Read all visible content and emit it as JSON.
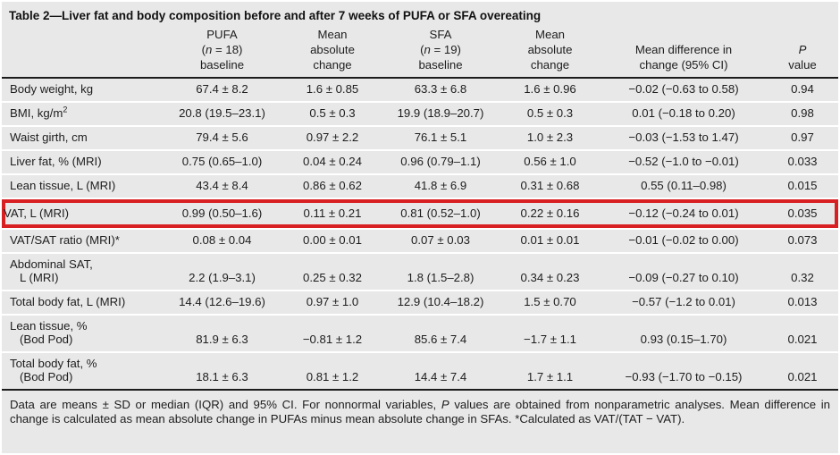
{
  "title": "Table 2—Liver fat and body composition before and after 7 weeks of PUFA or SFA overeating",
  "colors": {
    "highlight_box": "#d81f21",
    "background": "#e8e8e8",
    "rule": "#1c1c1c"
  },
  "table": {
    "columns": [
      {
        "id": "measure",
        "lines": []
      },
      {
        "id": "pufa-baseline",
        "lines": [
          [
            "PUFA"
          ],
          [
            "(",
            {
              "t": "n",
              "i": true
            },
            " = 18)"
          ],
          [
            "baseline"
          ]
        ]
      },
      {
        "id": "pufa-mean-absolute-change",
        "lines": [
          [
            "Mean"
          ],
          [
            "absolute"
          ],
          [
            "change"
          ]
        ]
      },
      {
        "id": "sfa-baseline",
        "lines": [
          [
            "SFA"
          ],
          [
            "(",
            {
              "t": "n",
              "i": true
            },
            " = 19)"
          ],
          [
            "baseline"
          ]
        ]
      },
      {
        "id": "sfa-mean-absolute-change",
        "lines": [
          [
            "Mean"
          ],
          [
            "absolute"
          ],
          [
            "change"
          ]
        ]
      },
      {
        "id": "mean-difference",
        "lines": [
          [
            "Mean difference in"
          ],
          [
            "change (95% CI)"
          ]
        ]
      },
      {
        "id": "p-value",
        "lines": [
          [
            {
              "t": "P",
              "i": true
            }
          ],
          [
            "value"
          ]
        ]
      }
    ],
    "rows": [
      {
        "label": [
          [
            "Body weight, kg"
          ]
        ],
        "values": [
          "67.4 ± 8.2",
          "1.6 ± 0.85",
          "63.3 ± 6.8",
          "1.6 ± 0.96",
          "−0.02 (−0.63 to 0.58)",
          "0.94"
        ]
      },
      {
        "label": [
          [
            "BMI, kg/m",
            {
              "t": "2",
              "sup": true
            }
          ]
        ],
        "values": [
          "20.8 (19.5–23.1)",
          "0.5 ± 0.3",
          "19.9 (18.9–20.7)",
          "0.5 ± 0.3",
          "0.01 (−0.18 to 0.20)",
          "0.98"
        ]
      },
      {
        "label": [
          [
            "Waist girth, cm"
          ]
        ],
        "values": [
          "79.4 ± 5.6",
          "0.97 ± 2.2",
          "76.1 ± 5.1",
          "1.0 ± 2.3",
          "−0.03 (−1.53 to 1.47)",
          "0.97"
        ]
      },
      {
        "label": [
          [
            "Liver fat, % (MRI)"
          ]
        ],
        "values": [
          "0.75 (0.65–1.0)",
          "0.04 ± 0.24",
          "0.96 (0.79–1.1)",
          "0.56 ± 1.0",
          "−0.52 (−1.0 to −0.01)",
          "0.033"
        ]
      },
      {
        "label": [
          [
            "Lean tissue, L (MRI)"
          ]
        ],
        "values": [
          "43.4 ± 8.4",
          "0.86 ± 0.62",
          "41.8 ± 6.9",
          "0.31 ± 0.68",
          "0.55 (0.11–0.98)",
          "0.015"
        ]
      },
      {
        "label": [
          [
            "VAT, L (MRI)"
          ]
        ],
        "highlight": true,
        "values": [
          "0.99 (0.50–1.6)",
          "0.11 ± 0.21",
          "0.81 (0.52–1.0)",
          "0.22 ± 0.16",
          "−0.12 (−0.24 to 0.01)",
          "0.035"
        ]
      },
      {
        "label": [
          [
            "VAT/SAT ratio (MRI)*"
          ]
        ],
        "values": [
          "0.08 ± 0.04",
          "0.00 ± 0.01",
          "0.07 ± 0.03",
          "0.01 ± 0.01",
          "−0.01 (−0.02 to 0.00)",
          "0.073"
        ]
      },
      {
        "label": [
          [
            "Abdominal SAT,"
          ],
          [
            "L (MRI)"
          ]
        ],
        "values": [
          "2.2 (1.9–3.1)",
          "0.25 ± 0.32",
          "1.8 (1.5–2.8)",
          "0.34 ± 0.23",
          "−0.09 (−0.27 to 0.10)",
          "0.32"
        ]
      },
      {
        "label": [
          [
            "Total body fat, L (MRI)"
          ]
        ],
        "values": [
          "14.4 (12.6–19.6)",
          "0.97 ± 1.0",
          "12.9 (10.4–18.2)",
          "1.5 ± 0.70",
          "−0.57 (−1.2 to 0.01)",
          "0.013"
        ]
      },
      {
        "label": [
          [
            "Lean tissue, %"
          ],
          [
            "(Bod Pod)"
          ]
        ],
        "values": [
          "81.9 ± 6.3",
          "−0.81 ± 1.2",
          "85.6 ± 7.4",
          "−1.7 ± 1.1",
          "0.93 (0.15–1.70)",
          "0.021"
        ]
      },
      {
        "label": [
          [
            "Total body fat, %"
          ],
          [
            "(Bod Pod)"
          ]
        ],
        "values": [
          "18.1 ± 6.3",
          "0.81 ± 1.2",
          "14.4 ± 7.4",
          "1.7 ± 1.1",
          "−0.93 (−1.70 to −0.15)",
          "0.021"
        ]
      }
    ]
  },
  "footnote": [
    "Data are means ± SD or median (IQR) and 95% CI. For nonnormal variables, ",
    {
      "t": "P",
      "i": true
    },
    " values are obtained from nonparametric analyses. Mean difference in change is calculated as mean absolute change in PUFAs minus mean absolute change in SFAs. *Calculated as VAT/(TAT − VAT)."
  ]
}
